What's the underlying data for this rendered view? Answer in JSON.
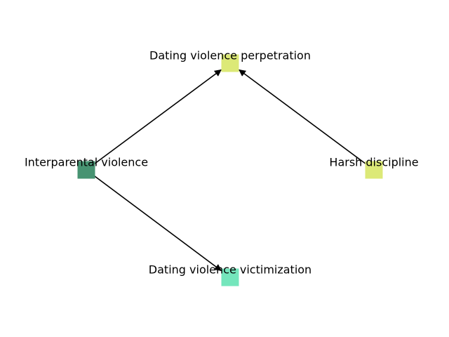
{
  "diagram": {
    "type": "directed-graph",
    "nodes": [
      {
        "id": "interparental",
        "label": "Interparental violence",
        "color": "#479372"
      },
      {
        "id": "perpetration",
        "label": "Dating violence perpetration",
        "color": "#dce977"
      },
      {
        "id": "victimization",
        "label": "Dating violence victimization",
        "color": "#74e6bc"
      },
      {
        "id": "harsh",
        "label": "Harsh discipline",
        "color": "#dce977"
      }
    ],
    "edges": [
      {
        "from": "interparental",
        "to": "perpetration"
      },
      {
        "from": "interparental",
        "to": "victimization"
      },
      {
        "from": "harsh",
        "to": "perpetration"
      }
    ],
    "edge_color": "#000000"
  }
}
